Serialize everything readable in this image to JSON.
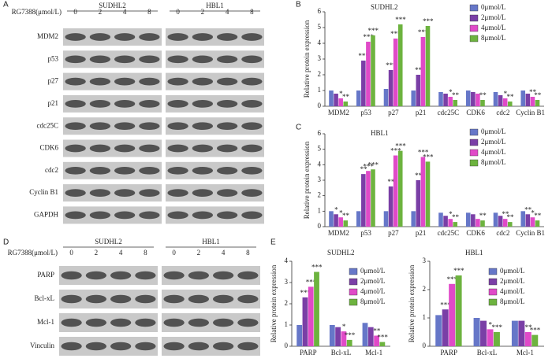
{
  "blots": [
    {
      "panel": "A",
      "treatment_label": "RG7388(μmol/L)",
      "cell_lines": [
        "SUDHL2",
        "HBL1"
      ],
      "doses": [
        "0",
        "2",
        "4",
        "8"
      ],
      "proteins": [
        "MDM2",
        "p53",
        "p27",
        "p21",
        "cdc25C",
        "CDK6",
        "cdc2",
        "Cyclin B1",
        "GAPDH"
      ]
    },
    {
      "panel": "D",
      "treatment_label": "RG7388(μmol/L)",
      "cell_lines": [
        "SUDHL2",
        "HBL1"
      ],
      "doses": [
        "0",
        "2",
        "4",
        "8"
      ],
      "proteins": [
        "PARP",
        "Bcl-xL",
        "Mcl-1",
        "Vinculin"
      ]
    }
  ],
  "chart_data": [
    {
      "type": "bar",
      "panel": "B",
      "title": "SUDHL2",
      "y_label": "Relative protein expression",
      "categories": [
        "MDM2",
        "p53",
        "p27",
        "p21",
        "cdc25C",
        "CDK6",
        "cdc2",
        "Cyclin B1"
      ],
      "ylim": [
        0,
        6
      ],
      "yticks": [
        0,
        1,
        2,
        3,
        4,
        5,
        6
      ],
      "series": [
        {
          "name": "0μmol/L",
          "color": "#6677c8",
          "values": [
            1,
            1,
            1.1,
            1,
            0.9,
            1,
            0.9,
            1
          ]
        },
        {
          "name": "2μmol/L",
          "color": "#7a3fa6",
          "values": [
            0.8,
            2.9,
            2.3,
            2.0,
            0.8,
            0.9,
            0.7,
            0.8
          ],
          "significance": [
            null,
            "***",
            "***",
            "**",
            null,
            null,
            null,
            null
          ]
        },
        {
          "name": "4μmol/L",
          "color": "#e04ac8",
          "values": [
            0.5,
            4.1,
            4.3,
            4.4,
            0.6,
            0.8,
            0.5,
            0.6
          ],
          "significance": [
            "*",
            "***",
            "***",
            "***",
            "*",
            null,
            "*",
            "**"
          ]
        },
        {
          "name": "8μmol/L",
          "color": "#6db33f",
          "values": [
            0.3,
            4.5,
            5.2,
            5.1,
            0.4,
            0.4,
            0.3,
            0.4
          ],
          "significance": [
            "**",
            "***",
            "***",
            "***",
            "**",
            "**",
            "**",
            "**"
          ]
        }
      ]
    },
    {
      "type": "bar",
      "panel": "C",
      "title": "HBL1",
      "y_label": "Relative protein expression",
      "categories": [
        "MDM2",
        "p53",
        "p27",
        "p21",
        "cdc25C",
        "CDK6",
        "cdc2",
        "Cyclin B1"
      ],
      "ylim": [
        0,
        6
      ],
      "yticks": [
        0,
        1,
        2,
        3,
        4,
        5,
        6
      ],
      "series": [
        {
          "name": "0μmol/L",
          "color": "#6677c8",
          "values": [
            1,
            1,
            1,
            1,
            0.9,
            0.9,
            0.9,
            1
          ]
        },
        {
          "name": "2μmol/L",
          "color": "#7a3fa6",
          "values": [
            0.8,
            3.4,
            2.6,
            3.0,
            0.7,
            0.8,
            0.7,
            0.8
          ],
          "significance": [
            "*",
            "**",
            "**",
            "**",
            null,
            null,
            null,
            "**"
          ]
        },
        {
          "name": "4μmol/L",
          "color": "#e04ac8",
          "values": [
            0.6,
            3.6,
            4.6,
            4.5,
            0.5,
            0.5,
            0.5,
            0.6
          ],
          "significance": [
            "*",
            "***",
            "***",
            "***",
            "*",
            null,
            "**",
            "*"
          ]
        },
        {
          "name": "8μmol/L",
          "color": "#6db33f",
          "values": [
            0.4,
            3.7,
            4.9,
            4.2,
            0.3,
            0.4,
            0.3,
            0.4
          ],
          "significance": [
            "**",
            "***",
            "***",
            "***",
            "**",
            "**",
            "**",
            "**"
          ]
        }
      ]
    },
    {
      "type": "bar",
      "panel": "E",
      "title": "SUDHL2",
      "y_label": "Relative protein expression",
      "categories": [
        "PARP",
        "Bcl-xL",
        "Mcl-1"
      ],
      "ylim": [
        0,
        4
      ],
      "yticks": [
        0,
        1,
        2,
        3,
        4
      ],
      "series": [
        {
          "name": "0μmol/L",
          "color": "#6677c8",
          "values": [
            1,
            1,
            1.1
          ]
        },
        {
          "name": "2μmol/L",
          "color": "#7a3fa6",
          "values": [
            2.3,
            0.9,
            0.9
          ],
          "significance": [
            "***",
            null,
            null
          ]
        },
        {
          "name": "4μmol/L",
          "color": "#e04ac8",
          "values": [
            2.8,
            0.7,
            0.5
          ],
          "significance": [
            "***",
            "*",
            "**"
          ]
        },
        {
          "name": "8μmol/L",
          "color": "#6db33f",
          "values": [
            3.5,
            0.3,
            0.2
          ],
          "significance": [
            "***",
            "***",
            "***"
          ]
        }
      ]
    },
    {
      "type": "bar",
      "title": "HBL1",
      "y_label": "Relative protein expression",
      "categories": [
        "PARP",
        "Bcl-xL",
        "Mcl-1"
      ],
      "ylim": [
        0,
        3
      ],
      "yticks": [
        0,
        1,
        2,
        3
      ],
      "series": [
        {
          "name": "0μmol/L",
          "color": "#6677c8",
          "values": [
            1.1,
            1,
            0.9
          ]
        },
        {
          "name": "2μmol/L",
          "color": "#7a3fa6",
          "values": [
            1.3,
            0.9,
            0.9
          ],
          "significance": [
            "***",
            null,
            null
          ]
        },
        {
          "name": "4μmol/L",
          "color": "#e04ac8",
          "values": [
            2.2,
            0.6,
            0.5
          ],
          "significance": [
            "***",
            "*",
            "**"
          ]
        },
        {
          "name": "8μmol/L",
          "color": "#6db33f",
          "values": [
            2.5,
            0.5,
            0.4
          ],
          "significance": [
            "***",
            "***",
            "***"
          ]
        }
      ]
    }
  ]
}
